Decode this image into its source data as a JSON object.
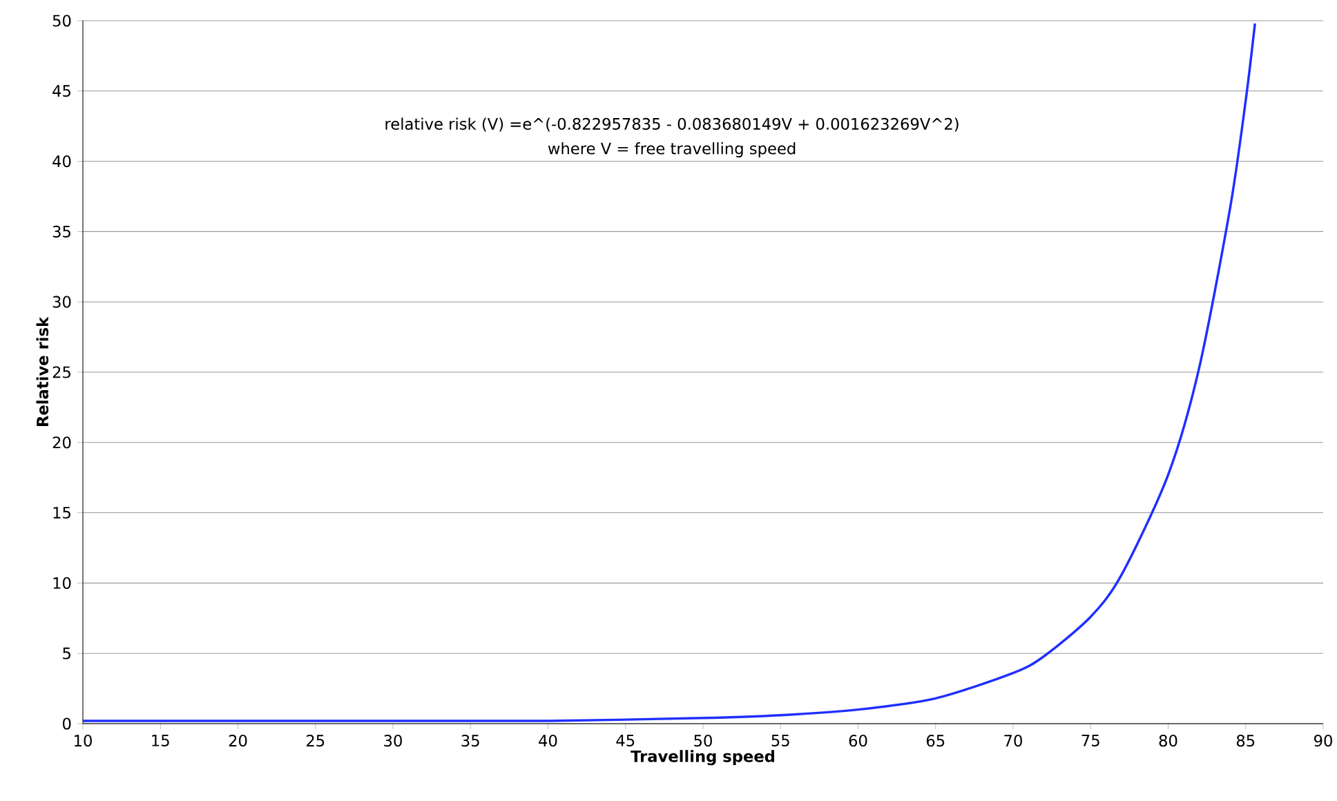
{
  "chart_data": {
    "type": "line",
    "xlabel": "Travelling speed",
    "ylabel": "Relative risk",
    "annotations": [
      "relative risk (V) =e^(-0.822957835 - 0.083680149V + 0.001623269V^2)",
      "where V = free travelling speed"
    ],
    "x": [
      10,
      20,
      30,
      40,
      50,
      55,
      60,
      65,
      70,
      72,
      75,
      77,
      80,
      82,
      84,
      85,
      85.6
    ],
    "series": [
      {
        "color": "#1f2fff",
        "values": [
          0.2,
          0.2,
          0.2,
          0.2,
          0.4,
          0.6,
          1.0,
          1.8,
          3.6,
          4.8,
          7.6,
          10.6,
          17.7,
          25.3,
          36.7,
          44.3,
          49.8
        ]
      }
    ],
    "xlim": [
      10,
      90
    ],
    "ylim": [
      0,
      50
    ],
    "xticks": [
      10,
      15,
      20,
      25,
      30,
      35,
      40,
      45,
      50,
      55,
      60,
      65,
      70,
      75,
      80,
      85,
      90
    ],
    "yticks": [
      0,
      5,
      10,
      15,
      20,
      25,
      30,
      35,
      40,
      45,
      50
    ],
    "grid": "y",
    "marker": "none",
    "line_style": "solid"
  }
}
